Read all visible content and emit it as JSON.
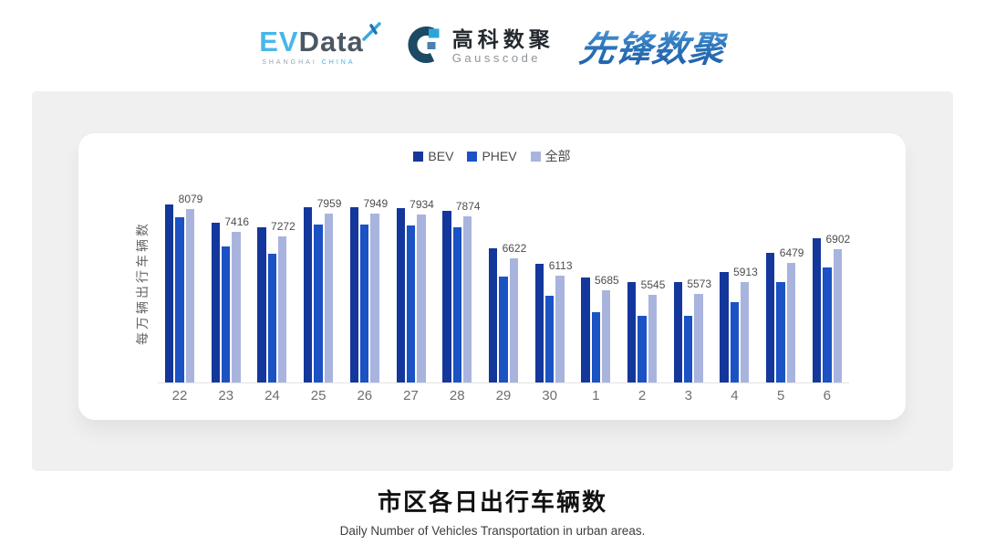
{
  "logos": {
    "evdata": {
      "text_ev": "EV",
      "text_data": "Data",
      "sub_location": "SHANGHAI",
      "sub_country": "CHINA"
    },
    "gausscode": {
      "chinese": "高科数聚",
      "english": "Gausscode"
    },
    "xianfeng": {
      "text": "先锋数聚"
    }
  },
  "chart_data": {
    "type": "bar",
    "title": "市区各日出行车辆数",
    "y_axis_label": "每万辆出行车辆数",
    "categories": [
      "22",
      "23",
      "24",
      "25",
      "26",
      "27",
      "28",
      "29",
      "30",
      "1",
      "2",
      "3",
      "4",
      "5",
      "6"
    ],
    "series": [
      {
        "name": "BEV",
        "color": "#14379C",
        "values": [
          8210,
          7670,
          7540,
          8140,
          8150,
          8120,
          8030,
          6920,
          6450,
          6050,
          5910,
          5930,
          6220,
          6780,
          7210
        ]
      },
      {
        "name": "PHEV",
        "color": "#1B52C4",
        "values": [
          7830,
          6980,
          6760,
          7630,
          7630,
          7600,
          7540,
          6070,
          5500,
          5020,
          4930,
          4910,
          5320,
          5910,
          6350
        ]
      },
      {
        "name": "全部",
        "color": "#A9B4DE",
        "values": [
          8079,
          7416,
          7272,
          7959,
          7949,
          7934,
          7874,
          6622,
          6113,
          5685,
          5545,
          5573,
          5913,
          6479,
          6902
        ]
      }
    ],
    "data_labels": {
      "series": "全部",
      "values": [
        8079,
        7416,
        7272,
        7959,
        7949,
        7934,
        7874,
        6622,
        6113,
        5685,
        5545,
        5573,
        5913,
        6479,
        6902
      ]
    },
    "ylim": [
      2940,
      8600
    ],
    "grid": false,
    "legend_position": "top-center",
    "axis_line_color": "#e2e2e2"
  },
  "footer": {
    "title": "市区各日出行车辆数",
    "subtitle": "Daily Number of Vehicles Transportation in urban areas."
  }
}
